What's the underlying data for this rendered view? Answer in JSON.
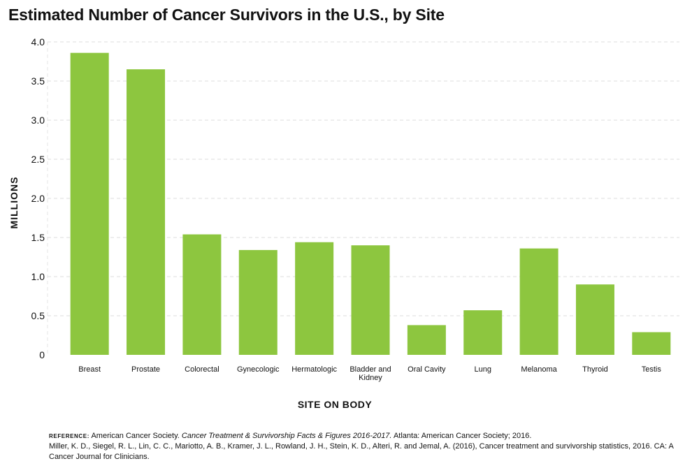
{
  "title": "Estimated Number of Cancer Survivors in the U.S., by Site",
  "chart_data": {
    "type": "bar",
    "title": "Estimated Number of Cancer Survivors in the U.S., by Site",
    "xlabel": "SITE ON BODY",
    "ylabel": "MILLIONS",
    "categories": [
      "Breast",
      "Prostate",
      "Colorectal",
      "Gynecologic",
      "Hermatologic",
      "Bladder and Kidney",
      "Oral Cavity",
      "Lung",
      "Melanoma",
      "Thyroid",
      "Testis"
    ],
    "category_lines": [
      [
        "Breast"
      ],
      [
        "Prostate"
      ],
      [
        "Colorectal"
      ],
      [
        "Gynecologic"
      ],
      [
        "Hermatologic"
      ],
      [
        "Bladder and",
        "Kidney"
      ],
      [
        "Oral Cavity"
      ],
      [
        "Lung"
      ],
      [
        "Melanoma"
      ],
      [
        "Thyroid"
      ],
      [
        "Testis"
      ]
    ],
    "values": [
      3.86,
      3.65,
      1.54,
      1.34,
      1.44,
      1.4,
      0.38,
      0.57,
      1.36,
      0.9,
      0.29
    ],
    "ylim": [
      0,
      4.0
    ],
    "yticks": [
      "0",
      "0.5",
      "1.0",
      "1.5",
      "2.0",
      "2.5",
      "3.0",
      "3.5",
      "4.0"
    ],
    "grid": "horizontal dashed",
    "legend": "none",
    "bar_color": "#8dc63f",
    "grid_color": "#dddddd"
  },
  "references": {
    "tag": "REFERENCE:",
    "line1_pre": "American Cancer Society.",
    "line1_italic": "Cancer Treatment & Survivorship Facts & Figures 2016-2017.",
    "line1_post": "Atlanta: American Cancer Society; 2016.",
    "line2": "Miller, K. D., Siegel, R. L., Lin, C. C., Mariotto, A. B., Kramer, J. L., Rowland, J. H., Stein, K. D., Alteri, R. and Jemal, A. (2016), Cancer treatment and survivorship statistics, 2016. CA: A Cancer Journal for Clinicians."
  }
}
